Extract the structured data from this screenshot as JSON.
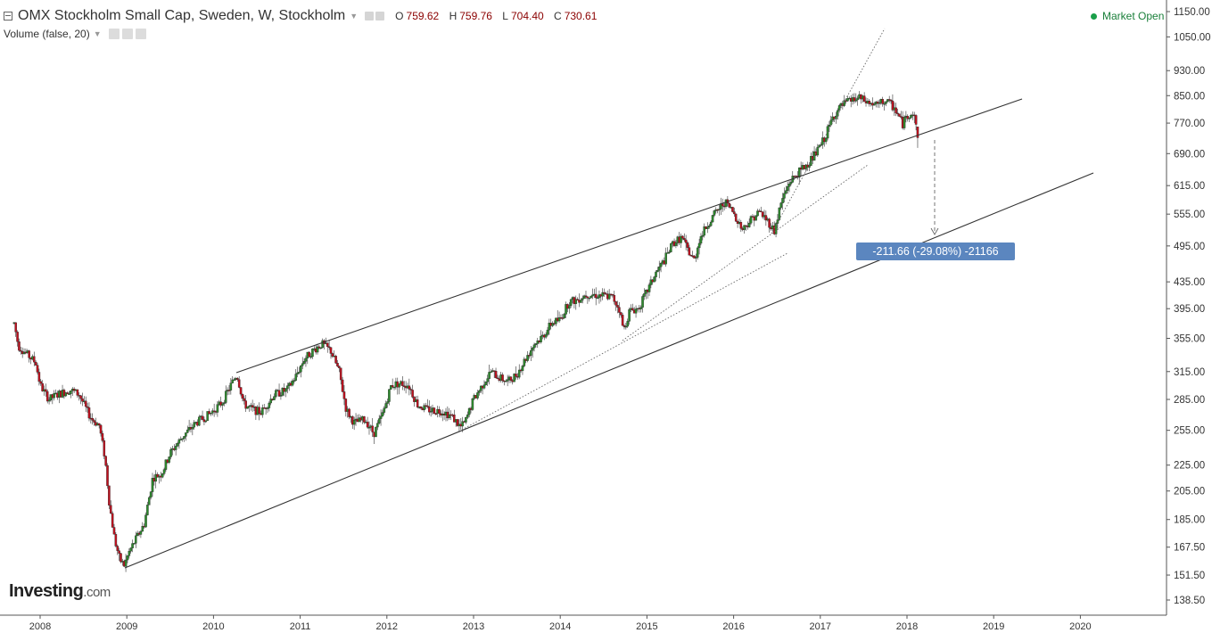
{
  "header": {
    "title": "OMX Stockholm Small Cap, Sweden, W, Stockholm",
    "ohlc": [
      {
        "key": "O",
        "value": "759.62"
      },
      {
        "key": "H",
        "value": "759.76"
      },
      {
        "key": "L",
        "value": "704.40"
      },
      {
        "key": "C",
        "value": "730.61"
      }
    ],
    "volume_label": "Volume (false, 20)",
    "market_status": "Market Open"
  },
  "brand": {
    "name": "Investing",
    "domain": ".com"
  },
  "measure_label": "-211.66 (-29.08%) -21166",
  "colors": {
    "up": "#2e8b2e",
    "down": "#c0111f",
    "tag": "#5b86bf",
    "status": "#1a9f4a"
  },
  "chart_data": {
    "type": "candlestick",
    "title": "OMX Stockholm Small Cap, Sweden, W, Stockholm",
    "y_scale": "log",
    "ylim": [
      131,
      1180
    ],
    "y_ticks": [
      "1150.00",
      "1050.00",
      "930.00",
      "850.00",
      "770.00",
      "690.00",
      "615.00",
      "555.00",
      "495.00",
      "435.00",
      "395.00",
      "355.00",
      "315.00",
      "285.00",
      "255.00",
      "225.00",
      "205.00",
      "185.00",
      "167.50",
      "151.50",
      "138.50"
    ],
    "x_ticks": [
      "2008",
      "2009",
      "2010",
      "2011",
      "2012",
      "2013",
      "2014",
      "2015",
      "2016",
      "2017",
      "2018",
      "2019",
      "2020"
    ],
    "x_range": [
      2007.7,
      2020.9
    ],
    "last": {
      "open": 759.62,
      "high": 759.76,
      "low": 704.4,
      "close": 730.61
    },
    "approx_weekly_close_path": [
      [
        2007.7,
        375
      ],
      [
        2007.75,
        345
      ],
      [
        2007.85,
        335
      ],
      [
        2007.95,
        325
      ],
      [
        2008.0,
        300
      ],
      [
        2008.1,
        285
      ],
      [
        2008.2,
        290
      ],
      [
        2008.35,
        295
      ],
      [
        2008.45,
        290
      ],
      [
        2008.55,
        272
      ],
      [
        2008.6,
        265
      ],
      [
        2008.68,
        260
      ],
      [
        2008.75,
        230
      ],
      [
        2008.8,
        195
      ],
      [
        2008.86,
        172
      ],
      [
        2008.92,
        160
      ],
      [
        2008.97,
        157
      ],
      [
        2009.03,
        165
      ],
      [
        2009.1,
        172
      ],
      [
        2009.2,
        182
      ],
      [
        2009.3,
        215
      ],
      [
        2009.4,
        218
      ],
      [
        2009.5,
        235
      ],
      [
        2009.65,
        250
      ],
      [
        2009.8,
        262
      ],
      [
        2009.95,
        270
      ],
      [
        2010.1,
        282
      ],
      [
        2010.2,
        300
      ],
      [
        2010.27,
        312
      ],
      [
        2010.35,
        280
      ],
      [
        2010.45,
        275
      ],
      [
        2010.55,
        272
      ],
      [
        2010.7,
        290
      ],
      [
        2010.85,
        295
      ],
      [
        2010.95,
        310
      ],
      [
        2011.05,
        330
      ],
      [
        2011.15,
        340
      ],
      [
        2011.25,
        348
      ],
      [
        2011.35,
        340
      ],
      [
        2011.45,
        315
      ],
      [
        2011.53,
        275
      ],
      [
        2011.62,
        262
      ],
      [
        2011.75,
        265
      ],
      [
        2011.85,
        252
      ],
      [
        2011.95,
        270
      ],
      [
        2012.05,
        300
      ],
      [
        2012.15,
        302
      ],
      [
        2012.25,
        300
      ],
      [
        2012.35,
        280
      ],
      [
        2012.45,
        275
      ],
      [
        2012.55,
        274
      ],
      [
        2012.65,
        273
      ],
      [
        2012.75,
        268
      ],
      [
        2012.85,
        258
      ],
      [
        2012.9,
        262
      ],
      [
        2013.0,
        285
      ],
      [
        2013.1,
        300
      ],
      [
        2013.2,
        315
      ],
      [
        2013.3,
        308
      ],
      [
        2013.4,
        304
      ],
      [
        2013.5,
        312
      ],
      [
        2013.6,
        330
      ],
      [
        2013.7,
        348
      ],
      [
        2013.8,
        358
      ],
      [
        2013.9,
        375
      ],
      [
        2014.0,
        380
      ],
      [
        2014.1,
        405
      ],
      [
        2014.2,
        408
      ],
      [
        2014.3,
        416
      ],
      [
        2014.4,
        415
      ],
      [
        2014.5,
        414
      ],
      [
        2014.6,
        412
      ],
      [
        2014.68,
        395
      ],
      [
        2014.73,
        365
      ],
      [
        2014.8,
        392
      ],
      [
        2014.9,
        395
      ],
      [
        2015.0,
        420
      ],
      [
        2015.1,
        448
      ],
      [
        2015.2,
        470
      ],
      [
        2015.3,
        500
      ],
      [
        2015.4,
        510
      ],
      [
        2015.5,
        480
      ],
      [
        2015.55,
        470
      ],
      [
        2015.6,
        505
      ],
      [
        2015.7,
        535
      ],
      [
        2015.8,
        560
      ],
      [
        2015.9,
        580
      ],
      [
        2016.0,
        558
      ],
      [
        2016.1,
        525
      ],
      [
        2016.2,
        545
      ],
      [
        2016.3,
        560
      ],
      [
        2016.4,
        540
      ],
      [
        2016.47,
        522
      ],
      [
        2016.55,
        580
      ],
      [
        2016.65,
        625
      ],
      [
        2016.75,
        645
      ],
      [
        2016.85,
        665
      ],
      [
        2016.95,
        690
      ],
      [
        2017.05,
        730
      ],
      [
        2017.15,
        790
      ],
      [
        2017.25,
        820
      ],
      [
        2017.35,
        835
      ],
      [
        2017.45,
        842
      ],
      [
        2017.55,
        828
      ],
      [
        2017.65,
        820
      ],
      [
        2017.75,
        835
      ],
      [
        2017.85,
        815
      ],
      [
        2017.95,
        768
      ],
      [
        2018.0,
        790
      ],
      [
        2018.05,
        800
      ],
      [
        2018.1,
        780
      ],
      [
        2018.14,
        730.61
      ]
    ]
  }
}
